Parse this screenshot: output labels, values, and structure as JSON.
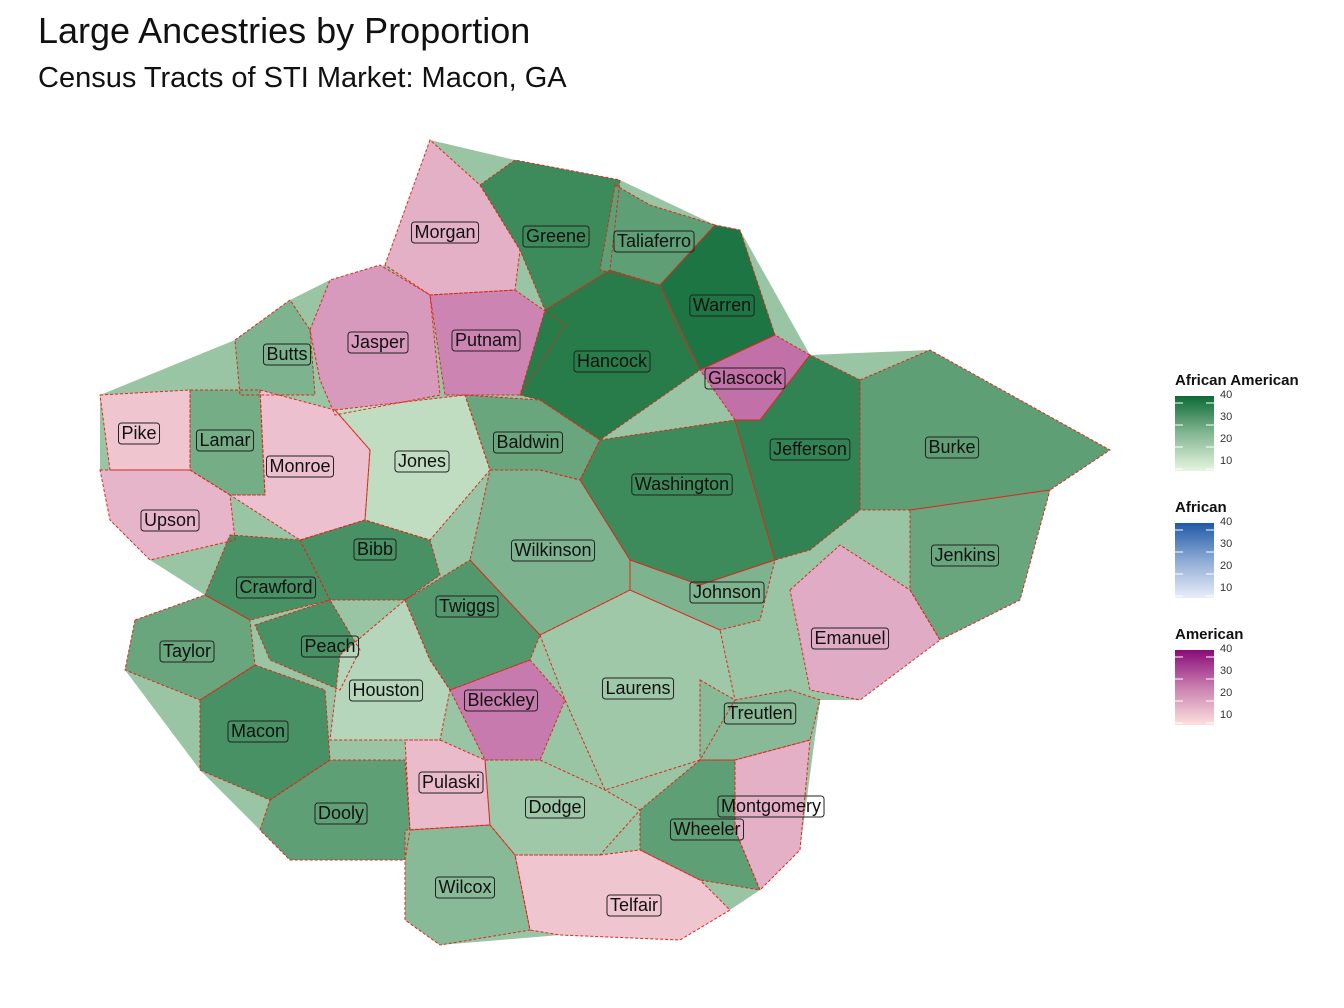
{
  "title": "Large Ancestries by Proportion",
  "subtitle": "Census Tracts of STI Market: Macon, GA",
  "colors": {
    "county_border": "#e0261c",
    "african_american_low": "#e6f5e0",
    "african_american_high": "#0c6b35",
    "african_low": "#e8eef8",
    "african_high": "#1f5aa8",
    "american_low": "#fde0dd",
    "american_high": "#8a0a78"
  },
  "legends": [
    {
      "title": "African American",
      "ticks": [
        "40",
        "30",
        "20",
        "10"
      ],
      "scale": "african_american"
    },
    {
      "title": "African",
      "ticks": [
        "40",
        "30",
        "20",
        "10"
      ],
      "scale": "african"
    },
    {
      "title": "American",
      "ticks": [
        "40",
        "30",
        "20",
        "10"
      ],
      "scale": "american"
    }
  ],
  "counties": [
    {
      "name": "Morgan",
      "ancestry": "American",
      "level": 14
    },
    {
      "name": "Greene",
      "ancestry": "African American",
      "level": 36
    },
    {
      "name": "Taliaferro",
      "ancestry": "African American",
      "level": 30
    },
    {
      "name": "Warren",
      "ancestry": "African American",
      "level": 42
    },
    {
      "name": "Butts",
      "ancestry": "African American",
      "level": 24
    },
    {
      "name": "Jasper",
      "ancestry": "American",
      "level": 18
    },
    {
      "name": "Putnam",
      "ancestry": "American",
      "level": 22
    },
    {
      "name": "Hancock",
      "ancestry": "African American",
      "level": 40
    },
    {
      "name": "Glascock",
      "ancestry": "American",
      "level": 26
    },
    {
      "name": "Pike",
      "ancestry": "American",
      "level": 10
    },
    {
      "name": "Lamar",
      "ancestry": "African American",
      "level": 26
    },
    {
      "name": "Monroe",
      "ancestry": "American",
      "level": 11
    },
    {
      "name": "Jones",
      "ancestry": "African American",
      "level": 12
    },
    {
      "name": "Baldwin",
      "ancestry": "African American",
      "level": 28
    },
    {
      "name": "Jefferson",
      "ancestry": "African American",
      "level": 38
    },
    {
      "name": "Burke",
      "ancestry": "African American",
      "level": 30
    },
    {
      "name": "Upson",
      "ancestry": "American",
      "level": 13
    },
    {
      "name": "Washington",
      "ancestry": "African American",
      "level": 36
    },
    {
      "name": "Bibb",
      "ancestry": "African American",
      "level": 34
    },
    {
      "name": "Wilkinson",
      "ancestry": "African American",
      "level": 24
    },
    {
      "name": "Jenkins",
      "ancestry": "African American",
      "level": 28
    },
    {
      "name": "Crawford",
      "ancestry": "African American",
      "level": 34
    },
    {
      "name": "Twiggs",
      "ancestry": "African American",
      "level": 32
    },
    {
      "name": "Johnson",
      "ancestry": "African American",
      "level": 24
    },
    {
      "name": "Taylor",
      "ancestry": "African American",
      "level": 28
    },
    {
      "name": "Peach",
      "ancestry": "African American",
      "level": 34
    },
    {
      "name": "Emanuel",
      "ancestry": "American",
      "level": 15
    },
    {
      "name": "Laurens",
      "ancestry": "African American",
      "level": 18
    },
    {
      "name": "Houston",
      "ancestry": "African American",
      "level": 14
    },
    {
      "name": "Bleckley",
      "ancestry": "American",
      "level": 24
    },
    {
      "name": "Treutlen",
      "ancestry": "African American",
      "level": 22
    },
    {
      "name": "Macon",
      "ancestry": "African American",
      "level": 34
    },
    {
      "name": "Pulaski",
      "ancestry": "American",
      "level": 12
    },
    {
      "name": "Dodge",
      "ancestry": "African American",
      "level": 18
    },
    {
      "name": "Montgomery",
      "ancestry": "American",
      "level": 14
    },
    {
      "name": "Dooly",
      "ancestry": "African American",
      "level": 30
    },
    {
      "name": "Wheeler",
      "ancestry": "African American",
      "level": 30
    },
    {
      "name": "Wilcox",
      "ancestry": "African American",
      "level": 22
    },
    {
      "name": "Telfair",
      "ancestry": "American",
      "level": 10
    }
  ]
}
